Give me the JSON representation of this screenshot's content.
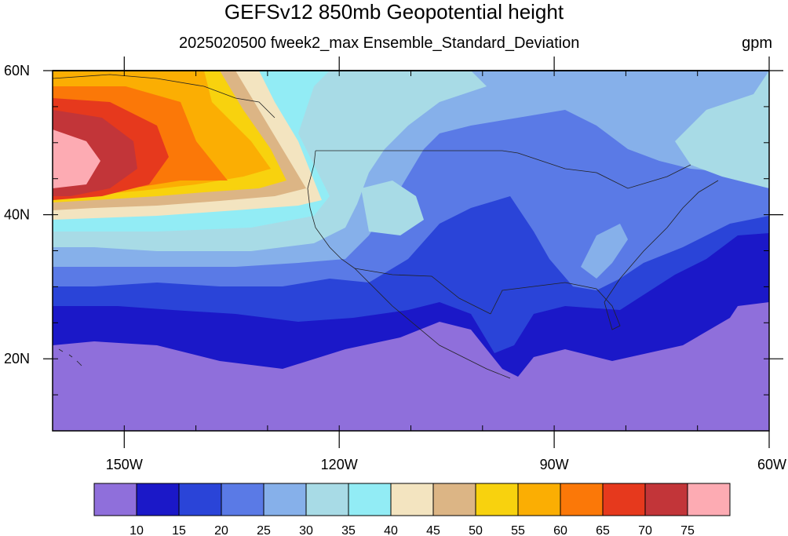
{
  "title": "GEFSv12 850mb Geopotential height",
  "subtitle": "2025020500 fweek2_max Ensemble_Standard_Deviation",
  "units": "gpm",
  "map": {
    "lon_range": [
      -160,
      -60
    ],
    "lat_range": [
      10,
      60
    ],
    "lon_ticks": [
      {
        "value": -150,
        "label": "150W"
      },
      {
        "value": -120,
        "label": "120W"
      },
      {
        "value": -90,
        "label": "90W"
      },
      {
        "value": -60,
        "label": "60W"
      }
    ],
    "lat_ticks": [
      {
        "value": 60,
        "label": "60N"
      },
      {
        "value": 40,
        "label": "40N"
      },
      {
        "value": 20,
        "label": "20N"
      }
    ]
  },
  "colorbar": {
    "levels": [
      "10",
      "15",
      "20",
      "25",
      "30",
      "35",
      "40",
      "45",
      "50",
      "55",
      "60",
      "65",
      "70",
      "75"
    ],
    "colors": [
      "#8f6fdb",
      "#1b18c8",
      "#2a44d8",
      "#5a7ae6",
      "#86b0ea",
      "#a8dbe6",
      "#92ecf5",
      "#f3e4c0",
      "#dcb585",
      "#f8d20e",
      "#fbae03",
      "#fb7808",
      "#e6391d",
      "#c23539",
      "#fdabb3"
    ]
  }
}
